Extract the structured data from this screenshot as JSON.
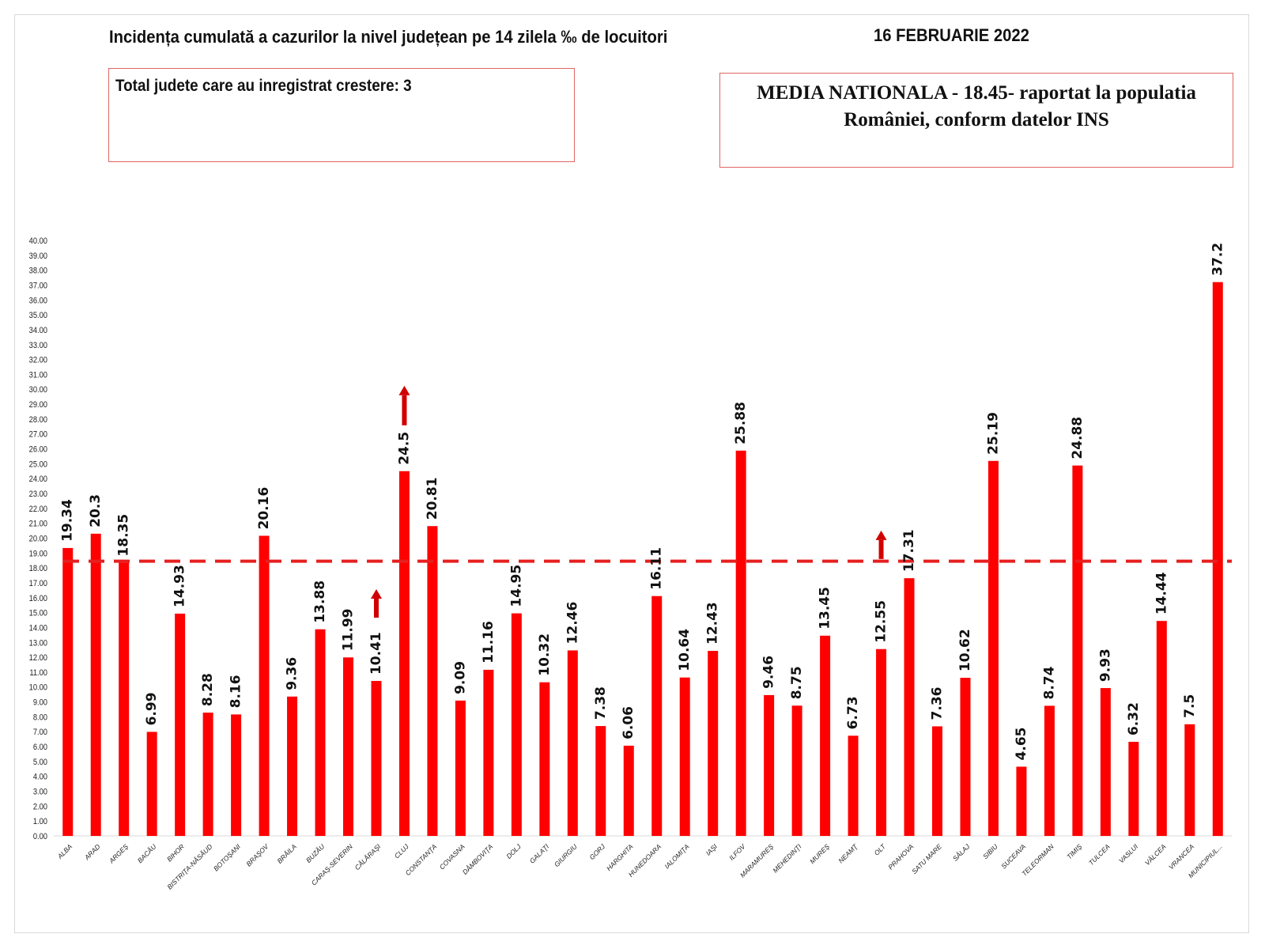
{
  "title": "Incidența cumulată a cazurilor la nivel județean pe 14 zilela ‰ de locuitori",
  "date": "16 FEBRUARIE 2022",
  "box_left": "Total judete care au inregistrat crestere: 3",
  "box_right": "MEDIA NATIONALA - 18.45-  raportat la populatia Românieі, conform datelor INS",
  "colors": {
    "bar": "#ff0000",
    "reference_line": "#e62020",
    "arrow": "#d10000"
  },
  "chart_data": {
    "type": "bar",
    "title": "Incidența cumulată a cazurilor la nivel județean pe 14 zilela ‰ de locuitori",
    "xlabel": "",
    "ylabel": "",
    "ylim": [
      0,
      40
    ],
    "ytick_step": 1,
    "grid": false,
    "reference_line": {
      "value": 18.45,
      "style": "dashed"
    },
    "categories": [
      "ALBA",
      "ARAD",
      "ARGEŞ",
      "BACĂU",
      "BIHOR",
      "BISTRIŢA-NĂSĂUD",
      "BOTOŞANI",
      "BRAŞOV",
      "BRĂILA",
      "BUZĂU",
      "CARAŞ-SEVERIN",
      "CĂLĂRAŞI",
      "CLUJ",
      "CONSTANŢA",
      "COVASNA",
      "DÂMBOVIŢA",
      "DOLJ",
      "GALAŢI",
      "GIURGIU",
      "GORJ",
      "HARGHITA",
      "HUNEDOARA",
      "IALOMIŢA",
      "IAŞI",
      "ILFOV",
      "MARAMUREŞ",
      "MEHEDINŢI",
      "MUREŞ",
      "NEAMŢ",
      "OLT",
      "PRAHOVA",
      "SATU MARE",
      "SĂLAJ",
      "SIBIU",
      "SUCEAVA",
      "TELEORMAN",
      "TIMIŞ",
      "TULCEA",
      "VASLUI",
      "VÂLCEA",
      "VRANCEA",
      "MUNICIPIUL..."
    ],
    "values": [
      19.34,
      20.3,
      18.35,
      6.99,
      14.93,
      8.28,
      8.16,
      20.16,
      9.36,
      13.88,
      11.99,
      10.41,
      24.5,
      20.81,
      9.09,
      11.16,
      14.95,
      10.32,
      12.46,
      7.38,
      6.06,
      16.11,
      10.64,
      12.43,
      25.88,
      9.46,
      8.75,
      13.45,
      6.73,
      12.55,
      17.31,
      7.36,
      10.62,
      25.19,
      4.65,
      8.74,
      24.88,
      9.93,
      6.32,
      14.44,
      7.5,
      37.2
    ],
    "data_labels": [
      "19.34",
      "20.3",
      "18.35",
      "6.99",
      "14.93",
      "8.28",
      "8.16",
      "20.16",
      "9.36",
      "13.88",
      "11.99",
      "10.41",
      "24.5",
      "20.81",
      "9.09",
      "11.16",
      "14.95",
      "10.32",
      "12.46",
      "7.38",
      "6.06",
      "16.11",
      "10.64",
      "12.43",
      "25.88",
      "9.46",
      "8.75",
      "13.45",
      "6.73",
      "12.55",
      "17.31",
      "7.36",
      "10.62",
      "25.19",
      "4.65",
      "8.74",
      "24.88",
      "9.93",
      "6.32",
      "14.44",
      "7.5",
      "37.2"
    ],
    "increase_arrows": [
      "CĂLĂRAŞI",
      "CLUJ",
      "OLT"
    ]
  }
}
